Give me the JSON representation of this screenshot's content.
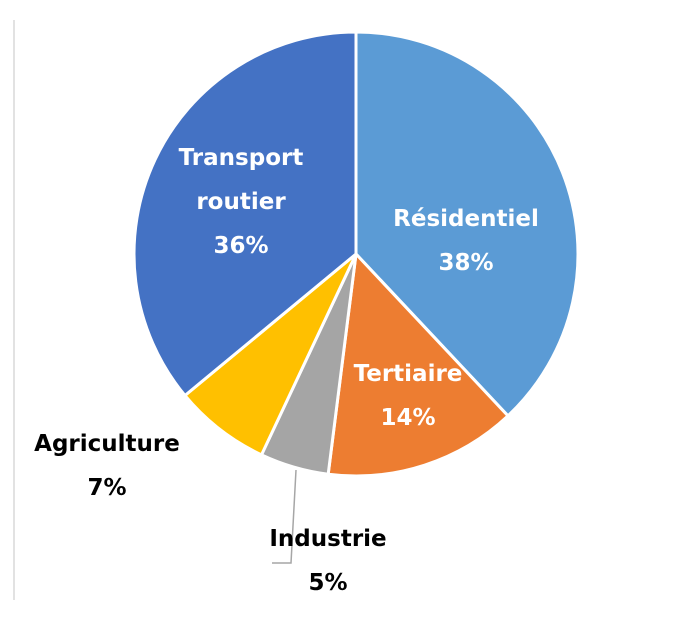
{
  "chart_data": {
    "type": "pie",
    "categories": [
      "Résidentiel",
      "Tertiaire",
      "Industrie",
      "Agriculture",
      "Transport routier"
    ],
    "values": [
      38,
      14,
      5,
      7,
      36
    ],
    "value_labels": [
      "38%",
      "14%",
      "5%",
      "7%",
      "36%"
    ],
    "colors": [
      "#5b9bd5",
      "#ed7d31",
      "#a5a5a5",
      "#ffc000",
      "#4472c4"
    ]
  }
}
